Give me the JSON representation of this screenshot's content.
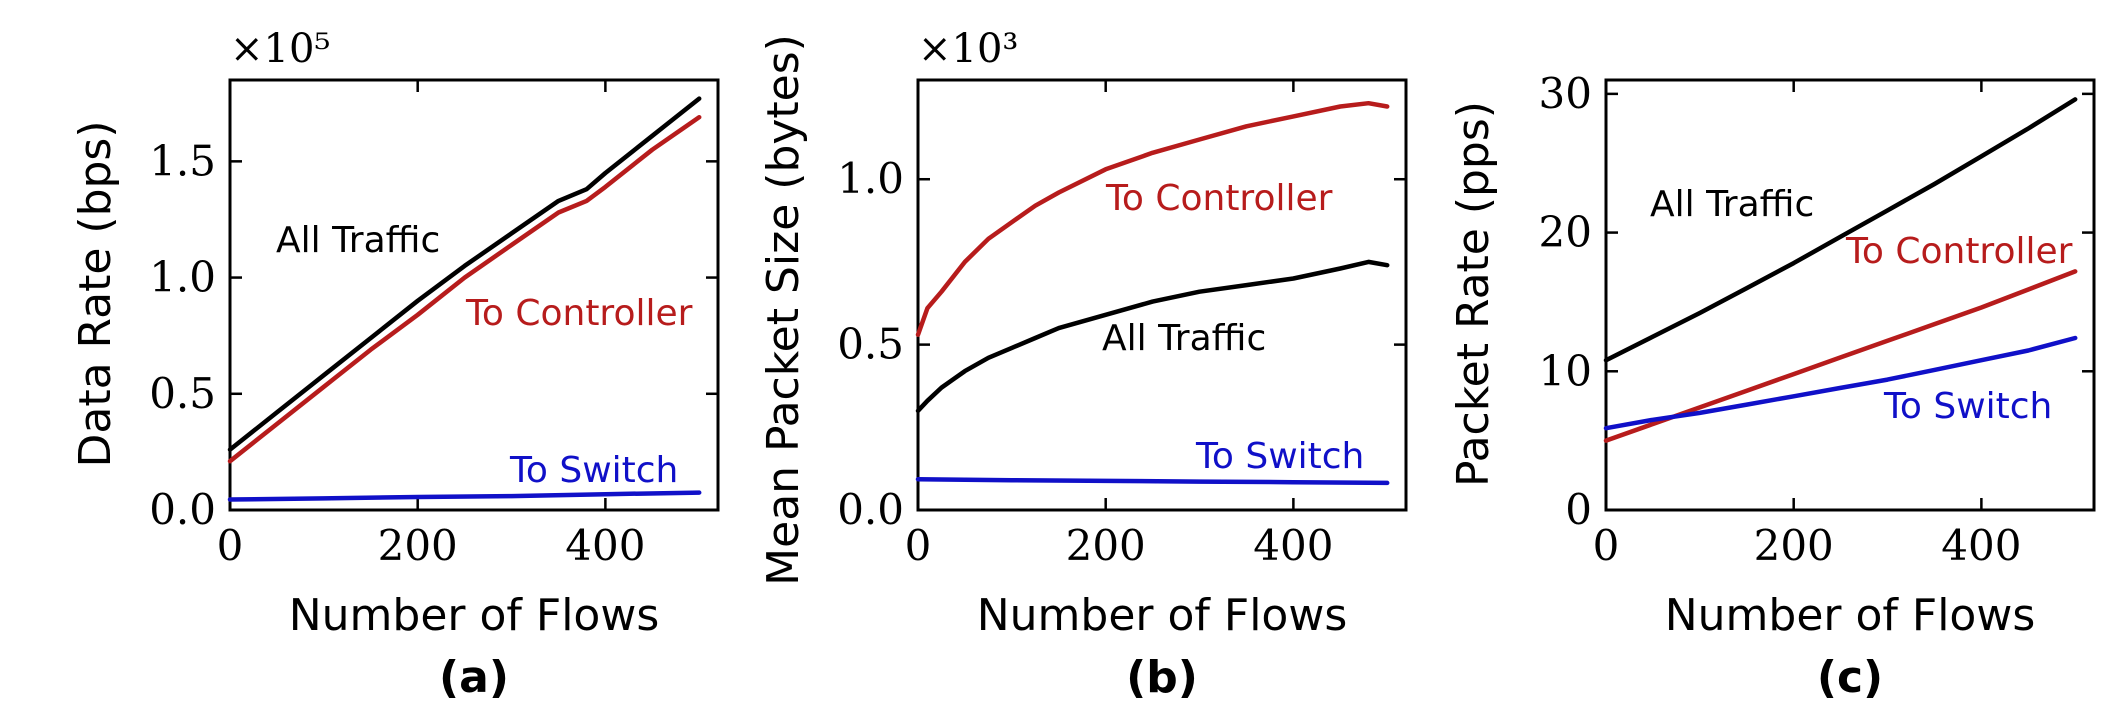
{
  "figure": {
    "panels": [
      {
        "id": "a",
        "caption": "(a)"
      },
      {
        "id": "b",
        "caption": "(b)"
      },
      {
        "id": "c",
        "caption": "(c)"
      }
    ]
  },
  "chart_data": [
    {
      "type": "line",
      "panel": "(a)",
      "xlabel": "Number of Flows",
      "ylabel": "Data Rate (bps)",
      "y_exponent": "×10⁵",
      "xlim": [
        0,
        520
      ],
      "ylim": [
        0,
        1.85
      ],
      "xticks": [
        0,
        200,
        400
      ],
      "xtick_labels": [
        "0",
        "200",
        "400"
      ],
      "yticks": [
        0,
        0.5,
        1.0,
        1.5
      ],
      "ytick_labels": [
        "0.0",
        "0.5",
        "1.0",
        "1.5"
      ],
      "series": [
        {
          "name": "All Traffic",
          "color": "#000000",
          "x": [
            0,
            50,
            100,
            150,
            200,
            250,
            300,
            350,
            380,
            400,
            450,
            500
          ],
          "y": [
            0.26,
            0.42,
            0.58,
            0.74,
            0.9,
            1.05,
            1.19,
            1.33,
            1.38,
            1.45,
            1.61,
            1.77
          ]
        },
        {
          "name": "To Controller",
          "color": "#b71c1c",
          "x": [
            0,
            50,
            100,
            150,
            200,
            250,
            300,
            350,
            380,
            400,
            450,
            500
          ],
          "y": [
            0.21,
            0.37,
            0.53,
            0.69,
            0.84,
            1.0,
            1.14,
            1.28,
            1.33,
            1.39,
            1.55,
            1.69
          ]
        },
        {
          "name": "To Switch",
          "color": "#1010c8",
          "x": [
            0,
            100,
            200,
            300,
            400,
            500
          ],
          "y": [
            0.045,
            0.05,
            0.056,
            0.06,
            0.068,
            0.075
          ]
        }
      ],
      "annotations": [
        {
          "text": "All Traffic",
          "color": "#000000"
        },
        {
          "text": "To Controller",
          "color": "#b71c1c"
        },
        {
          "text": "To Switch",
          "color": "#1010c8"
        }
      ]
    },
    {
      "type": "line",
      "panel": "(b)",
      "xlabel": "Number of Flows",
      "ylabel": "Mean Packet Size (bytes)",
      "y_exponent": "×10³",
      "xlim": [
        0,
        520
      ],
      "ylim": [
        0,
        1.3
      ],
      "xticks": [
        0,
        200,
        400
      ],
      "xtick_labels": [
        "0",
        "200",
        "400"
      ],
      "yticks": [
        0,
        0.5,
        1.0
      ],
      "ytick_labels": [
        "0.0",
        "0.5",
        "1.0"
      ],
      "series": [
        {
          "name": "To Controller",
          "color": "#b71c1c",
          "x": [
            0,
            10,
            25,
            50,
            75,
            100,
            125,
            150,
            200,
            250,
            300,
            350,
            400,
            450,
            480,
            500
          ],
          "y": [
            0.53,
            0.61,
            0.66,
            0.75,
            0.82,
            0.87,
            0.92,
            0.96,
            1.03,
            1.08,
            1.12,
            1.16,
            1.19,
            1.22,
            1.23,
            1.22
          ]
        },
        {
          "name": "All Traffic",
          "color": "#000000",
          "x": [
            0,
            10,
            25,
            50,
            75,
            100,
            125,
            150,
            200,
            250,
            300,
            350,
            400,
            450,
            480,
            500
          ],
          "y": [
            0.3,
            0.33,
            0.37,
            0.42,
            0.46,
            0.49,
            0.52,
            0.55,
            0.59,
            0.63,
            0.66,
            0.68,
            0.7,
            0.73,
            0.75,
            0.74
          ]
        },
        {
          "name": "To Switch",
          "color": "#1010c8",
          "x": [
            0,
            100,
            200,
            300,
            400,
            500
          ],
          "y": [
            0.093,
            0.09,
            0.088,
            0.086,
            0.084,
            0.082
          ]
        }
      ],
      "annotations": [
        {
          "text": "To Controller",
          "color": "#b71c1c"
        },
        {
          "text": "All Traffic",
          "color": "#000000"
        },
        {
          "text": "To Switch",
          "color": "#1010c8"
        }
      ]
    },
    {
      "type": "line",
      "panel": "(c)",
      "xlabel": "Number of Flows",
      "ylabel": "Packet Rate (pps)",
      "xlim": [
        0,
        520
      ],
      "ylim": [
        0,
        31
      ],
      "xticks": [
        0,
        200,
        400
      ],
      "xtick_labels": [
        "0",
        "200",
        "400"
      ],
      "yticks": [
        0,
        10,
        20,
        30
      ],
      "ytick_labels": [
        "0",
        "10",
        "20",
        "30"
      ],
      "series": [
        {
          "name": "All Traffic",
          "color": "#000000",
          "x": [
            0,
            50,
            100,
            150,
            200,
            250,
            300,
            350,
            400,
            450,
            500
          ],
          "y": [
            10.8,
            12.5,
            14.2,
            16.0,
            17.8,
            19.7,
            21.6,
            23.5,
            25.5,
            27.5,
            29.6
          ]
        },
        {
          "name": "To Controller",
          "color": "#b71c1c",
          "x": [
            0,
            50,
            100,
            150,
            200,
            250,
            300,
            350,
            400,
            450,
            500
          ],
          "y": [
            5.0,
            6.2,
            7.4,
            8.6,
            9.8,
            11.0,
            12.2,
            13.4,
            14.6,
            15.9,
            17.2
          ]
        },
        {
          "name": "To Switch",
          "color": "#1010c8",
          "x": [
            0,
            50,
            100,
            150,
            200,
            250,
            300,
            350,
            400,
            450,
            500
          ],
          "y": [
            5.9,
            6.5,
            7.0,
            7.6,
            8.2,
            8.8,
            9.4,
            10.1,
            10.8,
            11.5,
            12.4
          ]
        }
      ],
      "annotations": [
        {
          "text": "All Traffic",
          "color": "#000000"
        },
        {
          "text": "To Controller",
          "color": "#b71c1c"
        },
        {
          "text": "To Switch",
          "color": "#1010c8"
        }
      ]
    }
  ]
}
